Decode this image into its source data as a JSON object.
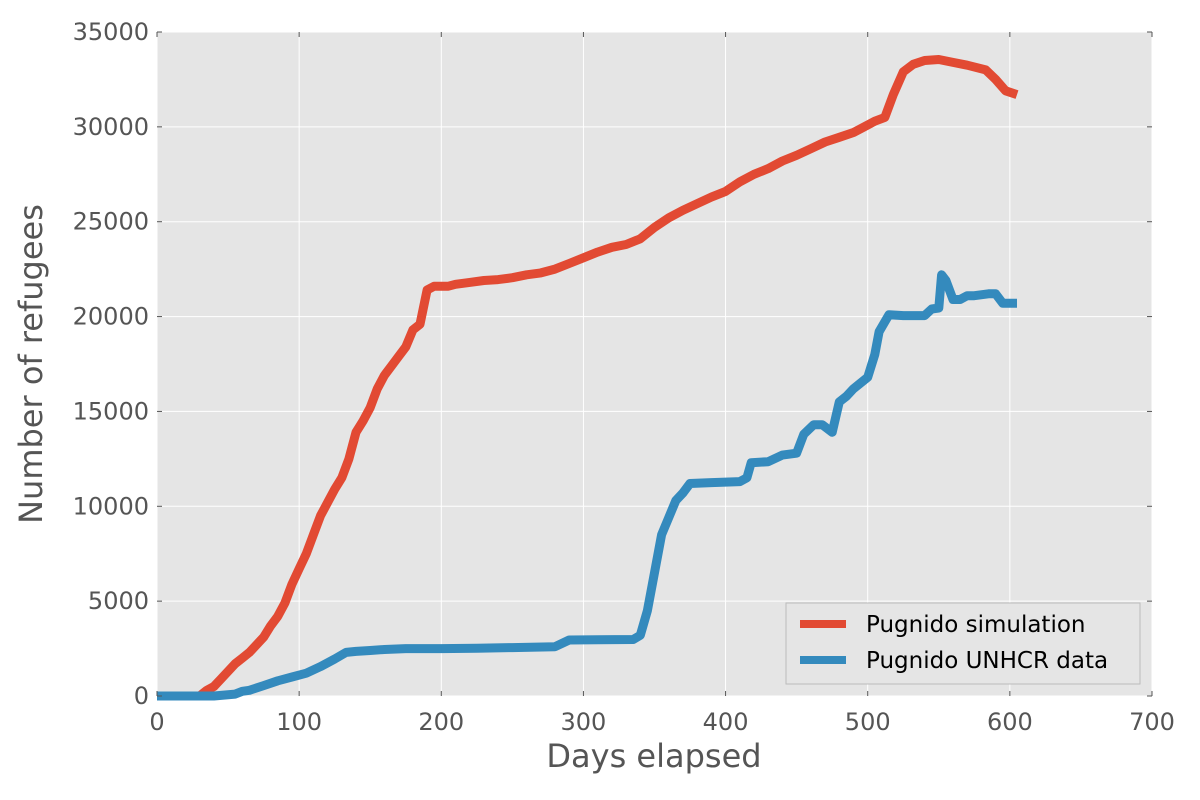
{
  "chart_data": {
    "type": "line",
    "title": "",
    "xlabel": "Days elapsed",
    "ylabel": "Number of refugees",
    "xlim": [
      0,
      700
    ],
    "ylim": [
      0,
      35000
    ],
    "xticks": [
      0,
      100,
      200,
      300,
      400,
      500,
      600,
      700
    ],
    "yticks": [
      0,
      5000,
      10000,
      15000,
      20000,
      25000,
      30000,
      35000
    ],
    "grid": true,
    "legend_position": "bottom-right",
    "series": [
      {
        "name": "Pugnido simulation",
        "color": "#e24a33",
        "points": [
          [
            0,
            0
          ],
          [
            30,
            0
          ],
          [
            35,
            300
          ],
          [
            40,
            500
          ],
          [
            45,
            900
          ],
          [
            50,
            1300
          ],
          [
            55,
            1700
          ],
          [
            60,
            2000
          ],
          [
            65,
            2300
          ],
          [
            70,
            2700
          ],
          [
            75,
            3100
          ],
          [
            80,
            3700
          ],
          [
            85,
            4200
          ],
          [
            90,
            4900
          ],
          [
            95,
            5900
          ],
          [
            100,
            6700
          ],
          [
            105,
            7500
          ],
          [
            110,
            8500
          ],
          [
            115,
            9500
          ],
          [
            120,
            10200
          ],
          [
            125,
            10900
          ],
          [
            130,
            11500
          ],
          [
            135,
            12500
          ],
          [
            140,
            13900
          ],
          [
            145,
            14500
          ],
          [
            150,
            15200
          ],
          [
            155,
            16200
          ],
          [
            160,
            16900
          ],
          [
            165,
            17400
          ],
          [
            170,
            17900
          ],
          [
            175,
            18400
          ],
          [
            180,
            19300
          ],
          [
            185,
            19600
          ],
          [
            190,
            21400
          ],
          [
            195,
            21600
          ],
          [
            200,
            21600
          ],
          [
            205,
            21600
          ],
          [
            210,
            21700
          ],
          [
            220,
            21800
          ],
          [
            230,
            21900
          ],
          [
            240,
            21950
          ],
          [
            250,
            22050
          ],
          [
            260,
            22200
          ],
          [
            270,
            22300
          ],
          [
            280,
            22500
          ],
          [
            290,
            22800
          ],
          [
            300,
            23100
          ],
          [
            310,
            23400
          ],
          [
            320,
            23650
          ],
          [
            330,
            23800
          ],
          [
            340,
            24100
          ],
          [
            350,
            24700
          ],
          [
            360,
            25200
          ],
          [
            370,
            25600
          ],
          [
            380,
            25950
          ],
          [
            390,
            26300
          ],
          [
            400,
            26600
          ],
          [
            410,
            27100
          ],
          [
            420,
            27500
          ],
          [
            430,
            27800
          ],
          [
            440,
            28200
          ],
          [
            450,
            28500
          ],
          [
            460,
            28850
          ],
          [
            470,
            29200
          ],
          [
            480,
            29450
          ],
          [
            490,
            29700
          ],
          [
            500,
            30100
          ],
          [
            505,
            30300
          ],
          [
            512,
            30500
          ],
          [
            518,
            31700
          ],
          [
            525,
            32900
          ],
          [
            532,
            33300
          ],
          [
            540,
            33500
          ],
          [
            550,
            33550
          ],
          [
            560,
            33400
          ],
          [
            570,
            33250
          ],
          [
            583,
            33000
          ],
          [
            590,
            32500
          ],
          [
            597,
            31900
          ],
          [
            605,
            31700
          ]
        ]
      },
      {
        "name": "Pugnido UNHCR data",
        "color": "#348abd",
        "points": [
          [
            0,
            0
          ],
          [
            20,
            0
          ],
          [
            40,
            0
          ],
          [
            55,
            100
          ],
          [
            60,
            250
          ],
          [
            65,
            300
          ],
          [
            75,
            550
          ],
          [
            85,
            800
          ],
          [
            95,
            1000
          ],
          [
            105,
            1200
          ],
          [
            115,
            1550
          ],
          [
            125,
            1950
          ],
          [
            133,
            2300
          ],
          [
            140,
            2350
          ],
          [
            150,
            2400
          ],
          [
            160,
            2450
          ],
          [
            175,
            2500
          ],
          [
            200,
            2500
          ],
          [
            225,
            2520
          ],
          [
            250,
            2550
          ],
          [
            280,
            2600
          ],
          [
            290,
            2950
          ],
          [
            310,
            2960
          ],
          [
            335,
            2980
          ],
          [
            340,
            3200
          ],
          [
            345,
            4500
          ],
          [
            350,
            6500
          ],
          [
            355,
            8500
          ],
          [
            360,
            9400
          ],
          [
            365,
            10300
          ],
          [
            370,
            10700
          ],
          [
            375,
            11200
          ],
          [
            390,
            11250
          ],
          [
            410,
            11300
          ],
          [
            415,
            11500
          ],
          [
            418,
            12300
          ],
          [
            430,
            12350
          ],
          [
            440,
            12700
          ],
          [
            450,
            12800
          ],
          [
            455,
            13800
          ],
          [
            462,
            14300
          ],
          [
            468,
            14300
          ],
          [
            475,
            13900
          ],
          [
            480,
            15500
          ],
          [
            485,
            15800
          ],
          [
            490,
            16200
          ],
          [
            500,
            16800
          ],
          [
            505,
            18000
          ],
          [
            508,
            19200
          ],
          [
            515,
            20100
          ],
          [
            525,
            20050
          ],
          [
            540,
            20050
          ],
          [
            545,
            20400
          ],
          [
            550,
            20450
          ],
          [
            552,
            22200
          ],
          [
            555,
            21900
          ],
          [
            560,
            20900
          ],
          [
            565,
            20900
          ],
          [
            570,
            21100
          ],
          [
            575,
            21100
          ],
          [
            585,
            21200
          ],
          [
            590,
            21200
          ],
          [
            595,
            20700
          ],
          [
            605,
            20700
          ]
        ]
      }
    ]
  }
}
